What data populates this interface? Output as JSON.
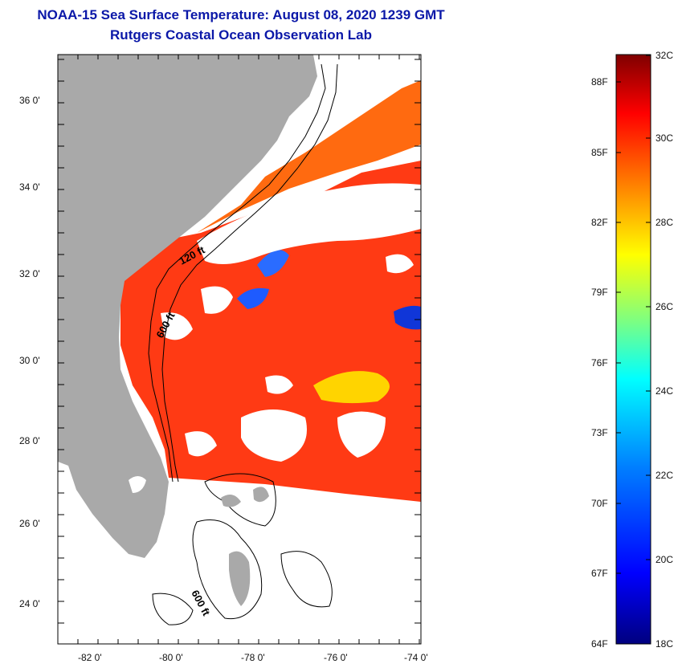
{
  "title": {
    "line1": "NOAA-15 Sea Surface Temperature:  August 08, 2020 1239 GMT",
    "line2": "Rutgers Coastal Ocean Observation Lab"
  },
  "map": {
    "latitude_labels": [
      "36 0'",
      "34 0'",
      "32 0'",
      "30 0'",
      "28 0'",
      "26 0'",
      "24 0'"
    ],
    "longitude_labels": [
      "-82 0'",
      "-80 0'",
      "-78 0'",
      "-76 0'",
      "-74 0'"
    ],
    "bathymetry_labels": [
      "120 ft",
      "600 ft",
      "600 ft"
    ],
    "colors": {
      "land": "#a9a9a9",
      "cloud": "#ffffff",
      "warm_water": "#ff3a14",
      "frame": "#000000"
    }
  },
  "colorbar": {
    "fahrenheit_labels": [
      "88F",
      "85F",
      "82F",
      "79F",
      "76F",
      "73F",
      "70F",
      "67F",
      "64F"
    ],
    "celsius_labels": [
      "32C",
      "30C",
      "28C",
      "26C",
      "24C",
      "22C",
      "20C",
      "18C"
    ],
    "celsius_range": [
      18,
      32
    ],
    "colors": [
      "#00007f",
      "#0000ff",
      "#007fff",
      "#00ffff",
      "#7fff7f",
      "#ffff00",
      "#ff7f00",
      "#ff0000",
      "#7f0000"
    ]
  }
}
